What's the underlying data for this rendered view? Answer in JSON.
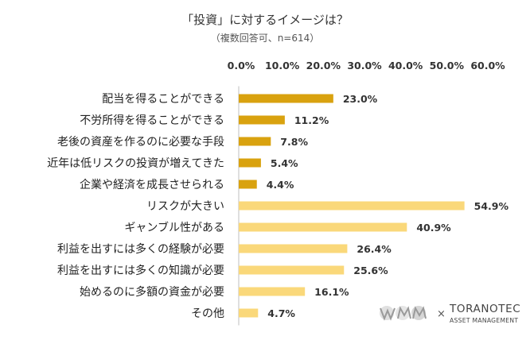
{
  "chart_data": {
    "type": "bar",
    "orientation": "horizontal",
    "title": "「投資」に対するイメージは？",
    "subtitle": "（複数回答可、n=614）",
    "categories": [
      "配当を得ることができる",
      "不労所得を得ることができる",
      "老後の資産を作るのに必要な手段",
      "近年は低リスクの投資が増えてきた",
      "企業や経済を成長させられる",
      "リスクが大きい",
      "ギャンブル性がある",
      "利益を出すには多くの経験が必要",
      "利益を出すには多くの知識が必要",
      "始めるのに多額の資金が必要",
      "その他"
    ],
    "values": [
      23.0,
      11.2,
      7.8,
      5.4,
      4.4,
      54.9,
      40.9,
      26.4,
      25.6,
      16.1,
      4.7
    ],
    "value_labels": [
      "23.0%",
      "11.2%",
      "7.8%",
      "5.4%",
      "4.4%",
      "54.9%",
      "40.9%",
      "26.4%",
      "25.6%",
      "16.1%",
      "4.7%"
    ],
    "xlim": [
      0,
      60
    ],
    "ticks": [
      "0.0%",
      "10.0%",
      "20.0%",
      "30.0%",
      "40.0%",
      "50.0%",
      "60.0%"
    ],
    "tick_values": [
      0,
      10,
      20,
      30,
      40,
      50,
      60
    ],
    "x_axis_position": "top",
    "grid": false,
    "colors": {
      "positive_group": "#D9A20F",
      "negative_group": "#FAD87A",
      "axis": "#BFBFBF"
    },
    "positive_group_count": 5
  },
  "logos": {
    "left_logo": "WM logo mark",
    "separator": "×",
    "brand_name": "TORANOTEC",
    "brand_sub": "ASSET MANAGEMENT"
  }
}
